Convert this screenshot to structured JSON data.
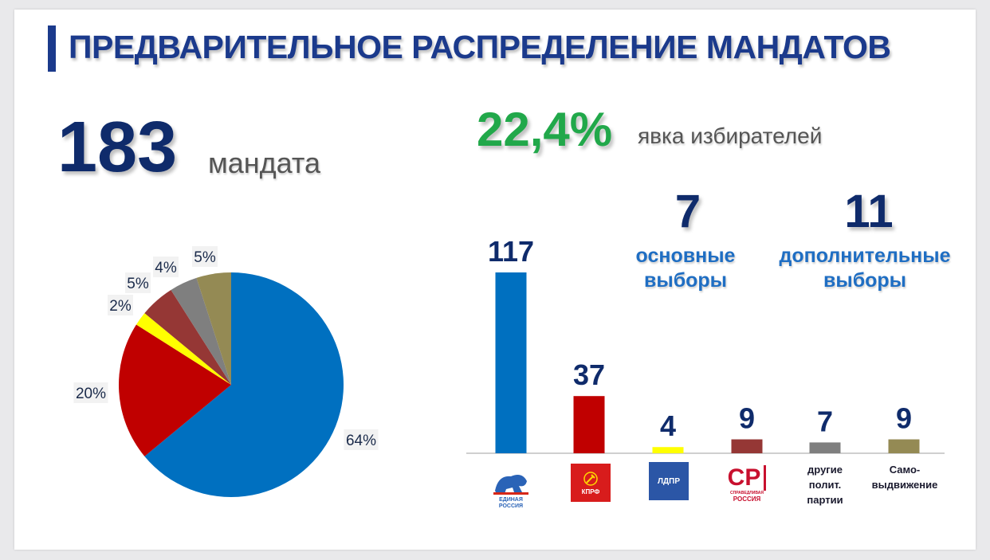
{
  "title": "ПРЕДВАРИТЕЛЬНОЕ РАСПРЕДЕЛЕНИЕ МАНДАТОВ",
  "total": {
    "number": "183",
    "label": "мандата"
  },
  "turnout": {
    "value": "22,4%",
    "label": "явка избирателей"
  },
  "elections": {
    "main": {
      "number": "7",
      "line1": "основные",
      "line2": "выборы"
    },
    "additional": {
      "number": "11",
      "line1": "дополнительные",
      "line2": "выборы"
    }
  },
  "logos": {
    "er_line1": "ЕДИНАЯ",
    "er_line2": "РОССИЯ",
    "kprf": "КПРФ",
    "ldpr": "ЛДПР",
    "sr_mark": "СР",
    "sr_line1": "СПРАВЕДЛИВАЯ",
    "sr_line2": "РОССИЯ"
  },
  "colors": {
    "er": "#0070c0",
    "kprf": "#c00000",
    "ldpr": "#ffff00",
    "sr": "#953735",
    "other": "#7f7f7f",
    "self": "#948a54"
  },
  "chart_data": [
    {
      "type": "pie",
      "values": [
        64,
        20,
        2,
        5,
        4,
        5
      ],
      "labels": [
        "64%",
        "20%",
        "2%",
        "5%",
        "4%",
        "5%"
      ],
      "colors": [
        "#0070c0",
        "#c00000",
        "#ffff00",
        "#953735",
        "#7f7f7f",
        "#948a54"
      ],
      "start": "top",
      "direction": "clockwise"
    },
    {
      "type": "bar",
      "categories": [
        "",
        "",
        "",
        "",
        "другие полит. партии",
        "Само-выдвижение"
      ],
      "category_lines": [
        [],
        [],
        [],
        [],
        [
          "другие",
          "полит.",
          "партии"
        ],
        [
          "Само-",
          "выдвижение"
        ]
      ],
      "values": [
        117,
        37,
        4,
        9,
        7,
        9
      ],
      "data_labels": [
        "117",
        "37",
        "4",
        "9",
        "7",
        "9"
      ],
      "colors": [
        "#0070c0",
        "#c00000",
        "#ffff00",
        "#953735",
        "#7f7f7f",
        "#948a54"
      ],
      "ylim": [
        0,
        117
      ],
      "grid": false
    }
  ]
}
